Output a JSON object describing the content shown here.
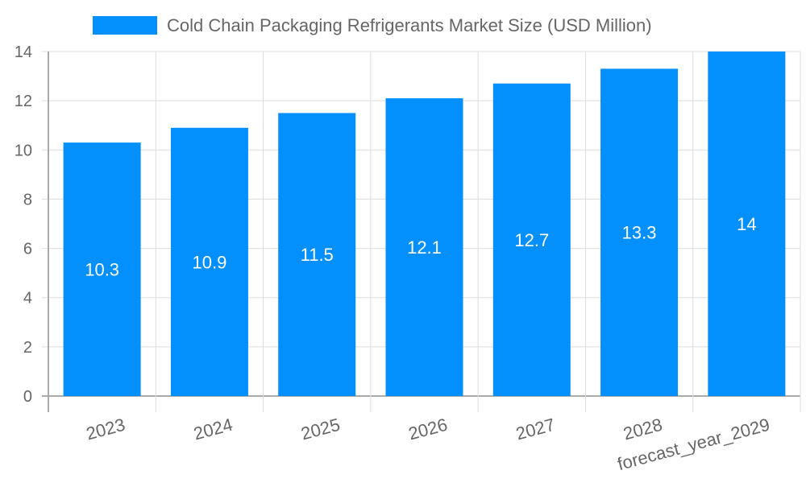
{
  "chart_data": {
    "type": "bar",
    "title": "",
    "legend": {
      "position": "top",
      "entries": [
        "Cold Chain Packaging Refrigerants Market  Size (USD Million)"
      ]
    },
    "categories": [
      "2023",
      "2024",
      "2025",
      "2026",
      "2027",
      "2028",
      "forecast_year_2029"
    ],
    "series": [
      {
        "name": "Cold Chain Packaging Refrigerants Market  Size (USD Million)",
        "values": [
          10.3,
          10.9,
          11.5,
          12.1,
          12.7,
          13.3,
          14
        ],
        "color": "#0490fc"
      }
    ],
    "data_labels": [
      "10.3",
      "10.9",
      "11.5",
      "12.1",
      "12.7",
      "13.3",
      "14"
    ],
    "ylim": [
      0,
      14
    ],
    "yticks": [
      "0",
      "2",
      "4",
      "6",
      "8",
      "10",
      "12",
      "14"
    ],
    "grid": true,
    "xlabel": "",
    "ylabel": ""
  }
}
